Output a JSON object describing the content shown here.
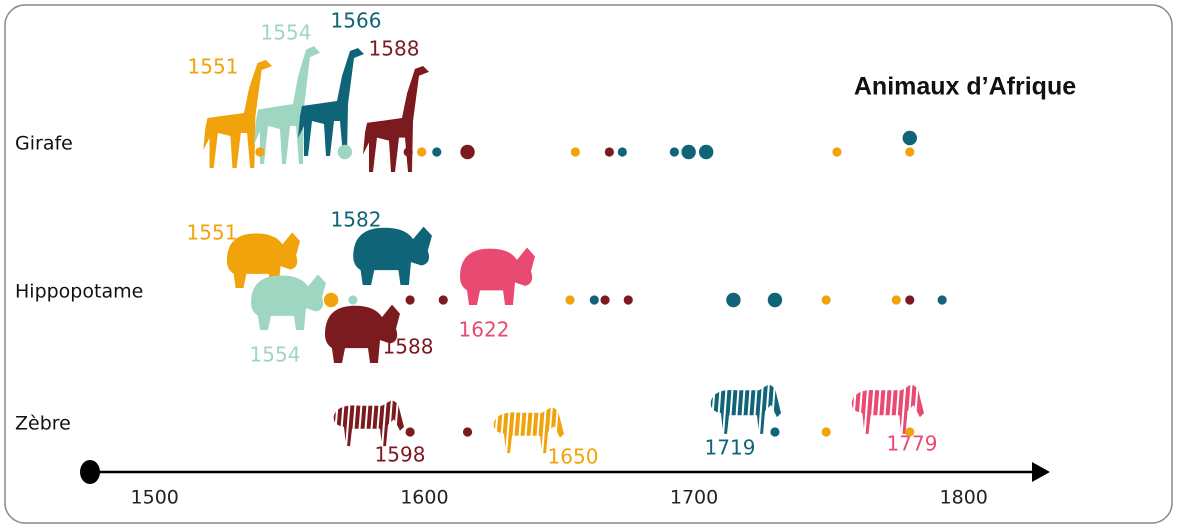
{
  "chart_data": {
    "type": "timeline",
    "title": "Animaux d’Afrique",
    "xlim": [
      1476,
      1832
    ],
    "xticks": [
      1500,
      1600,
      1700,
      1800
    ],
    "rows": [
      {
        "name": "Girafe",
        "x": [
          1539,
          1570.5,
          1594,
          1599,
          1604.6,
          1616,
          1656,
          1668.6,
          1673.4,
          1692.7,
          1698,
          1704.5,
          1753,
          1780,
          1780
        ],
        "colors": [
          "#f0a30a",
          "#9fd6c2",
          "#7b1a1f",
          "#f0a30a",
          "#0f6477",
          "#7b1a1f",
          "#f0a30a",
          "#7b1a1f",
          "#0f6477",
          "#0f6477",
          "#0f6477",
          "#0f6477",
          "#f0a30a",
          "#f0a30a",
          "#0f6477"
        ],
        "sizes": [
          1,
          2,
          1,
          1,
          1,
          2,
          1,
          1,
          1,
          1,
          2,
          2,
          1,
          1,
          2
        ],
        "animals": [
          {
            "year": 1551,
            "color": "#f0a30a"
          },
          {
            "year": 1554,
            "color": "#9fd6c2"
          },
          {
            "year": 1566,
            "color": "#0f6477"
          },
          {
            "year": 1588,
            "color": "#7b1a1f"
          }
        ]
      },
      {
        "name": "Hippopotame",
        "x": [
          1565.4,
          1573.5,
          1594.7,
          1607,
          1654,
          1663,
          1667,
          1675.6,
          1714.6,
          1730,
          1749,
          1775,
          1780,
          1792
        ],
        "colors": [
          "#f0a30a",
          "#9fd6c2",
          "#7b1a1f",
          "#7b1a1f",
          "#f0a30a",
          "#0f6477",
          "#7b1a1f",
          "#7b1a1f",
          "#0f6477",
          "#0f6477",
          "#f0a30a",
          "#f0a30a",
          "#7b1a1f",
          "#0f6477"
        ],
        "sizes": [
          2,
          1,
          1,
          1,
          1,
          1,
          1,
          1,
          2,
          2,
          1,
          1,
          1,
          1
        ],
        "animals": [
          {
            "year": 1551,
            "color": "#f0a30a"
          },
          {
            "year": 1554,
            "color": "#9fd6c2"
          },
          {
            "year": 1582,
            "color": "#0f6477"
          },
          {
            "year": 1588,
            "color": "#7b1a1f"
          },
          {
            "year": 1622,
            "color": "#e84a72"
          }
        ]
      },
      {
        "name": "Zèbre",
        "x": [
          1594.7,
          1616,
          1730,
          1749,
          1780
        ],
        "colors": [
          "#7b1a1f",
          "#7b1a1f",
          "#0f6477",
          "#f0a30a",
          "#f0a30a"
        ],
        "sizes": [
          1,
          1,
          1,
          1,
          1
        ],
        "animals": [
          {
            "year": 1598,
            "color": "#7b1a1f"
          },
          {
            "year": 1650,
            "color": "#f0a30a"
          },
          {
            "year": 1719,
            "color": "#0f6477"
          },
          {
            "year": 1779,
            "color": "#e84a72"
          }
        ]
      }
    ]
  }
}
